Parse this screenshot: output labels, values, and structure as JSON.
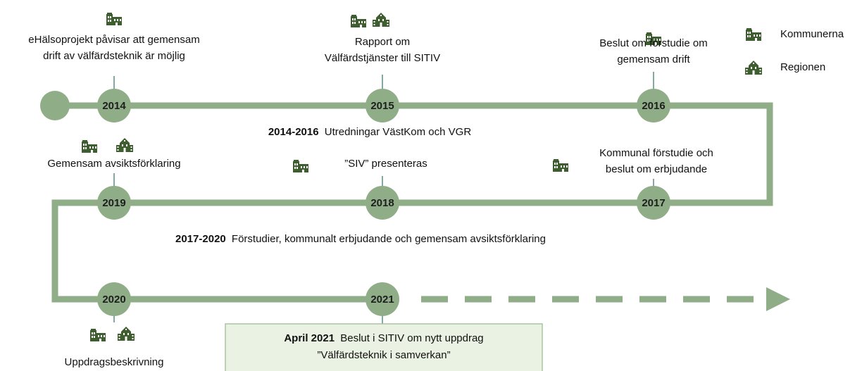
{
  "legend": [
    {
      "label": "Kommunerna"
    },
    {
      "label": "Regionen"
    }
  ],
  "milestones": [
    {
      "year": "2014",
      "lines": [
        "eHälsoprojekt påvisar att gemensam",
        "drift av välfärdsteknik är möjlig"
      ]
    },
    {
      "year": "2015",
      "lines": [
        "Rapport om",
        "Välfärdstjänster till SITIV"
      ]
    },
    {
      "year": "2016",
      "lines": [
        "Beslut om förstudie om",
        "gemensam drift"
      ]
    },
    {
      "year": "2017",
      "lines": [
        "Kommunal förstudie och",
        "beslut om erbjudande"
      ]
    },
    {
      "year": "2018",
      "lines": [
        "”SIV” presenteras"
      ]
    },
    {
      "year": "2019",
      "lines": [
        "Gemensam avsiktsförklaring"
      ]
    },
    {
      "year": "2020",
      "lines": [
        "Uppdragsbeskrivning"
      ]
    },
    {
      "year": "2021",
      "lines": []
    }
  ],
  "periods": [
    {
      "years": "2014-2016",
      "text": "Utredningar VästKom och VGR"
    },
    {
      "years": "2017-2020",
      "text": "Förstudier, kommunalt erbjudande och gemensam avsiktsförklaring"
    }
  ],
  "decision": {
    "date": "April 2021",
    "text": "Beslut i SITIV om nytt uppdrag",
    "line2": "”Välfärdsteknik i samverkan”"
  }
}
